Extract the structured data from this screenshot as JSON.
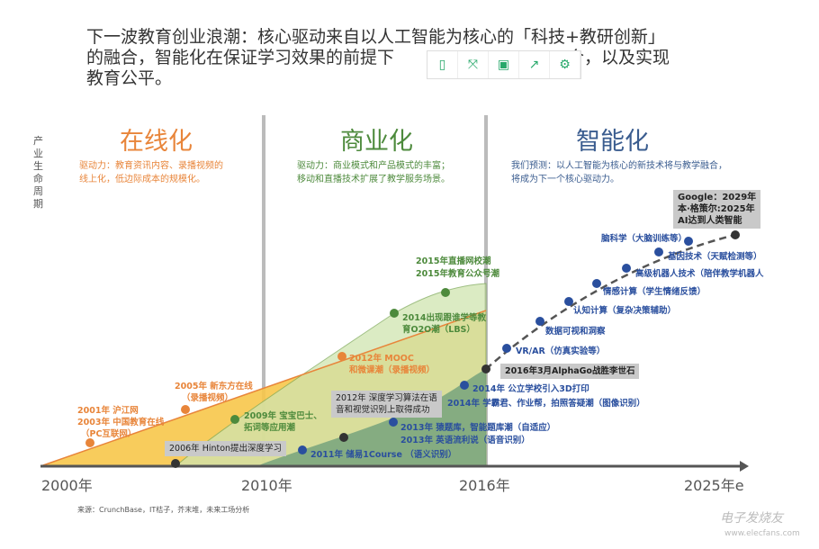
{
  "header": {
    "text": "下一波教育创业浪潮：核心驱动来自以人工智能为核心的「科技+教研创新」的融合，智能化在保证学习效果的前提下提高学习效率的融合，以及实现教育公平。",
    "visible_line1": "下一波教育创业浪潮：核心驱动来自以人工智能为核心的「科技+教研创新」",
    "visible_line2a": "的融合，智能化在保证学习效果的前提下",
    "visible_line2b": "合，以及实现",
    "visible_line3": "教育公平。"
  },
  "toolbar": {
    "icons": [
      "mobile-icon",
      "fullscreen-icon",
      "save-icon",
      "share-icon",
      "settings-icon"
    ],
    "glyphs": [
      "▯",
      "⤧",
      "▣",
      "↗",
      "⚙"
    ],
    "color": "#27a86a"
  },
  "y_axis_label": "产业生命周期",
  "phases": [
    {
      "title": "在线化",
      "desc1": "驱动力：教育资讯内容、录播视频的",
      "desc2": "线上化，低边际成本的规模化。",
      "color": "#e8853a"
    },
    {
      "title": "商业化",
      "desc1": "驱动力：商业模式和产品模式的丰富；",
      "desc2": "移动和直播技术扩展了教学服务场景。",
      "color": "#4d8a3c"
    },
    {
      "title": "智能化",
      "desc1": "我们预测：以人工智能为核心的新技术将与教学融合，",
      "desc2": "将成为下一个核心驱动力。",
      "color": "#3a5c8f"
    }
  ],
  "x_ticks": [
    "2000年",
    "2010年",
    "2016年",
    "2025年e"
  ],
  "orange_labels": [
    "2001年 沪江网",
    "2003年 中国教育在线",
    "（PC互联网）",
    "2005年 新东方在线",
    "（录播视频）",
    "2012年 MOOC",
    "和微课潮（录播视频）"
  ],
  "green_labels": [
    "2009年 宝宝巴士、",
    "拓词等应用潮",
    "2014出现跟谁学等教",
    "育O2O潮（LBS）",
    "2015年直播网校潮",
    "2015年教育公众号潮"
  ],
  "blue_labels": [
    "2011年 储易1Course （语义识别）",
    "2013年 猿题库，智能题库潮（自适应）",
    "2013年 英语流利说（语音识别）",
    "2014年 学霸君、作业帮，拍照答疑潮（图像识别）",
    "2014年 公立学校引入3D打印",
    "VR/AR（仿真实验等）",
    "数据可视和洞察",
    "认知计算（复杂决策辅助）",
    "情感计算（学生情绪反馈）",
    "高级机器人技术（陪伴教学机器人",
    "基因技术（天赋检测等）",
    "脑科学（大脑训练等）"
  ],
  "boxes": [
    "2006年 Hinton提出深度学习",
    "2012年 深度学习算法在语",
    "音和视觉识别上取得成功",
    "2016年3月AlphaGo战胜李世石",
    "Google：2029年",
    "本·格策尔:2025年",
    "AI达到人类智能"
  ],
  "source": "来源：CrunchBase，IT桔子，芥末堆，未来工场分析",
  "watermark": {
    "name": "电子发烧友",
    "url": "www.elecfans.com"
  },
  "colors": {
    "orange": "#f0a030",
    "yellow_area": "#f7c64a",
    "green_area": "#cfe5c5",
    "dark_area": "#7fae84",
    "blue": "#2a4f9e",
    "dark": "#333333"
  }
}
